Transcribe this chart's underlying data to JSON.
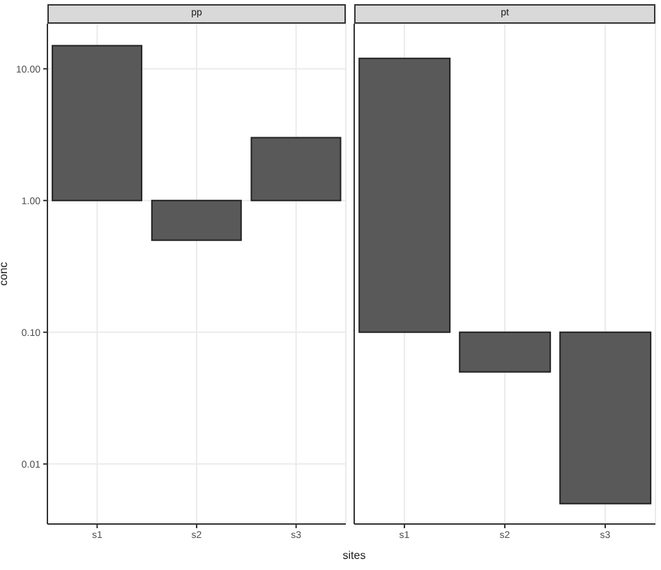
{
  "chart_data": [
    {
      "type": "bar",
      "title": "pp",
      "xlabel": "sites",
      "ylabel": "conc",
      "categories": [
        "s1",
        "s2",
        "s3"
      ],
      "base": [
        1,
        0.5,
        1
      ],
      "values": [
        14,
        0.5,
        2
      ],
      "color": "#595959",
      "log": true,
      "ylim": [
        0.0035,
        22
      ],
      "yticks": [
        {
          "value": 0.01,
          "label": "0.01"
        },
        {
          "value": 0.1,
          "label": "0.10"
        },
        {
          "value": 1,
          "label": "1.00"
        },
        {
          "value": 10,
          "label": "10.00"
        }
      ],
      "grid": true
    },
    {
      "type": "bar",
      "title": "pt",
      "categories": [
        "s1",
        "s2",
        "s3"
      ],
      "base": [
        0.1,
        0.05,
        0.005
      ],
      "values": [
        11.9,
        0.05,
        0.095
      ],
      "color": "#595959",
      "log": true,
      "ylim": [
        0.0035,
        22
      ],
      "yticks": [
        {
          "value": 0.01,
          "label": null
        },
        {
          "value": 0.1,
          "label": null
        },
        {
          "value": 1,
          "label": null
        },
        {
          "value": 10,
          "label": null
        }
      ],
      "grid": true,
      "tick_labels": "x"
    }
  ]
}
